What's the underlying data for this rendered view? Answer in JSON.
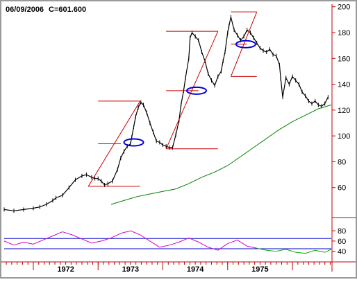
{
  "header": {
    "date": "06/09/2006",
    "close_label": "C=601.600"
  },
  "colors": {
    "frame": "#9a9a9a",
    "axis": "#c00000",
    "price": "#000000",
    "ma": "#008000",
    "trend": "#cc0000",
    "marker": "#0000dd",
    "osc_up": "#cc00cc",
    "osc_down": "#00aa00",
    "osc_band": "#0000cc"
  },
  "chart_data": [
    {
      "type": "line",
      "title": "",
      "xlabel": "",
      "ylabel": "",
      "x_tick_labels": [
        "1972",
        "1973",
        "1974",
        "1975"
      ],
      "y_tick_labels": [
        "60",
        "80",
        "100",
        "120",
        "140",
        "160",
        "180",
        "200"
      ],
      "y_ticks": [
        60,
        80,
        100,
        120,
        140,
        160,
        180,
        200
      ],
      "ylim": [
        40,
        202
      ],
      "xlim": [
        1971.55,
        1976.6
      ],
      "grid": false,
      "series": [
        {
          "role": "price",
          "x": [
            1971.55,
            1971.7,
            1971.85,
            1972.0,
            1972.1,
            1972.2,
            1972.3,
            1972.35,
            1972.45,
            1972.55,
            1972.65,
            1972.75,
            1972.82,
            1972.9,
            1972.95,
            1973.0,
            1973.05,
            1973.1,
            1973.15,
            1973.22,
            1973.3,
            1973.35,
            1973.4,
            1973.45,
            1973.5,
            1973.52,
            1973.55,
            1973.58,
            1973.62,
            1973.66,
            1973.7,
            1973.75,
            1973.8,
            1973.85,
            1973.9,
            1973.95,
            1974.0,
            1974.05,
            1974.1,
            1974.15,
            1974.2,
            1974.25,
            1974.28,
            1974.32,
            1974.35,
            1974.4,
            1974.42,
            1974.45,
            1974.5,
            1974.55,
            1974.6,
            1974.65,
            1974.7,
            1974.75,
            1974.8,
            1974.85,
            1974.9,
            1974.93,
            1974.96,
            1975.0,
            1975.02,
            1975.05,
            1975.1,
            1975.15,
            1975.2,
            1975.25,
            1975.3,
            1975.35,
            1975.4,
            1975.45,
            1975.5,
            1975.55,
            1975.6,
            1975.65,
            1975.7,
            1975.75,
            1975.8,
            1975.82,
            1975.85,
            1975.9,
            1975.95,
            1976.0,
            1976.05,
            1976.1,
            1976.15,
            1976.2,
            1976.25,
            1976.3,
            1976.35,
            1976.4,
            1976.45,
            1976.5,
            1976.55
          ],
          "values": [
            43,
            42,
            43,
            44,
            45,
            47,
            50,
            52,
            54,
            60,
            66,
            69,
            70,
            68,
            67,
            67,
            65,
            62,
            63,
            65,
            74,
            83,
            88,
            92,
            94,
            99,
            107,
            115,
            122,
            126,
            124,
            118,
            110,
            103,
            96,
            95,
            93,
            92,
            91,
            91,
            101,
            112,
            124,
            135,
            145,
            160,
            176,
            180,
            177,
            174,
            165,
            158,
            148,
            143,
            139,
            146,
            150,
            158,
            165,
            180,
            185,
            192,
            182,
            178,
            174,
            177,
            182,
            180,
            176,
            172,
            168,
            166,
            165,
            167,
            163,
            162,
            155,
            144,
            130,
            145,
            140,
            146,
            143,
            140,
            134,
            131,
            127,
            125,
            127,
            124,
            123,
            125,
            130
          ]
        },
        {
          "role": "moving-average",
          "x": [
            1973.2,
            1973.4,
            1973.6,
            1973.8,
            1974.0,
            1974.2,
            1974.4,
            1974.6,
            1974.8,
            1975.0,
            1975.2,
            1975.4,
            1975.6,
            1975.8,
            1976.0,
            1976.2,
            1976.4,
            1976.6
          ],
          "values": [
            47,
            50,
            53,
            55,
            57,
            59,
            63,
            68,
            72,
            77,
            84,
            91,
            98,
            105,
            111,
            116,
            121,
            124
          ]
        }
      ],
      "trendlines": [
        {
          "x": [
            1972.85,
            1973.65
          ],
          "values": [
            61,
            127
          ]
        },
        {
          "x": [
            1974.05,
            1974.85
          ],
          "values": [
            90,
            181
          ]
        },
        {
          "x": [
            1975.05,
            1975.45
          ],
          "values": [
            146,
            196
          ]
        }
      ],
      "horizontal_segments": [
        {
          "x": [
            1972.85,
            1973.65
          ],
          "value": 61
        },
        {
          "x": [
            1973.0,
            1973.65
          ],
          "value": 127
        },
        {
          "x": [
            1973.0,
            1973.35
          ],
          "value": 94
        },
        {
          "x": [
            1974.05,
            1974.85
          ],
          "value": 90
        },
        {
          "x": [
            1974.05,
            1974.85
          ],
          "value": 181
        },
        {
          "x": [
            1974.05,
            1974.55
          ],
          "value": 135
        },
        {
          "x": [
            1975.05,
            1975.45
          ],
          "value": 146
        },
        {
          "x": [
            1975.05,
            1975.45
          ],
          "value": 196
        },
        {
          "x": [
            1975.05,
            1975.3
          ],
          "value": 171
        }
      ],
      "markers": [
        {
          "x": 1973.55,
          "value": 95
        },
        {
          "x": 1974.52,
          "value": 135
        },
        {
          "x": 1975.28,
          "value": 171
        }
      ]
    },
    {
      "type": "line",
      "title": "",
      "xlabel": "",
      "ylabel": "",
      "y_tick_labels": [
        "80",
        "60",
        "40"
      ],
      "y_ticks": [
        80,
        60,
        40
      ],
      "ylim": [
        22,
        95
      ],
      "xlim": [
        1971.55,
        1976.6
      ],
      "bands": [
        65,
        45
      ],
      "series": [
        {
          "role": "oscillator",
          "x": [
            1971.55,
            1971.7,
            1971.85,
            1972.0,
            1972.15,
            1972.3,
            1972.45,
            1972.6,
            1972.75,
            1972.9,
            1973.05,
            1973.2,
            1973.35,
            1973.5,
            1973.65,
            1973.8,
            1973.95,
            1974.1,
            1974.25,
            1974.4,
            1974.55,
            1974.7,
            1974.85,
            1975.0,
            1975.15,
            1975.3,
            1975.45,
            1975.6,
            1975.75,
            1975.9,
            1976.05,
            1976.2,
            1976.35,
            1976.5,
            1976.6
          ],
          "values": [
            60,
            52,
            58,
            54,
            62,
            70,
            78,
            72,
            64,
            56,
            60,
            66,
            75,
            80,
            72,
            60,
            48,
            52,
            58,
            66,
            58,
            48,
            42,
            55,
            62,
            50,
            46,
            42,
            40,
            44,
            38,
            36,
            42,
            38,
            44
          ]
        }
      ]
    }
  ]
}
